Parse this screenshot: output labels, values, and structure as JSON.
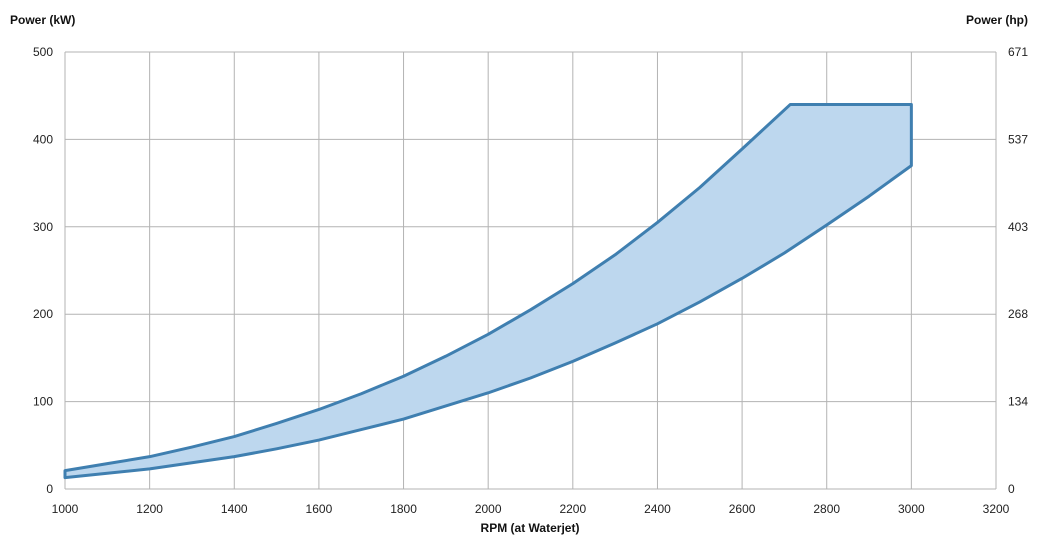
{
  "chart_data": {
    "type": "area",
    "xlabel": "RPM (at Waterjet)",
    "ylabel_left": "Power (kW)",
    "ylabel_right": "Power (hp)",
    "xlim": [
      1000,
      3200
    ],
    "ylim": [
      0,
      500
    ],
    "x_ticks": [
      1000,
      1200,
      1400,
      1600,
      1800,
      2000,
      2200,
      2400,
      2600,
      2800,
      3000,
      3200
    ],
    "y_ticks_left": [
      0,
      100,
      200,
      300,
      400,
      500
    ],
    "y_ticks_right": [
      0,
      134,
      268,
      403,
      537,
      671
    ],
    "grid": true,
    "fill_color": "#bdd7ee",
    "line_color": "#3f7fb0",
    "upper_boundary": {
      "x": [
        1000,
        1100,
        1200,
        1300,
        1400,
        1500,
        1600,
        1700,
        1800,
        1900,
        2000,
        2100,
        2200,
        2300,
        2400,
        2500,
        2600,
        2714,
        3000
      ],
      "y": [
        21,
        29,
        37,
        48,
        60,
        75,
        91,
        109,
        129,
        152,
        177,
        205,
        235,
        268,
        305,
        345,
        389,
        440,
        440
      ]
    },
    "lower_boundary": {
      "x": [
        1000,
        1100,
        1200,
        1300,
        1400,
        1500,
        1600,
        1700,
        1800,
        1900,
        2000,
        2100,
        2200,
        2300,
        2400,
        2500,
        2600,
        2700,
        2800,
        2900,
        3000
      ],
      "y": [
        13,
        18,
        23,
        30,
        37,
        46,
        56,
        68,
        80,
        95,
        110,
        127,
        146,
        167,
        189,
        214,
        241,
        270,
        302,
        335,
        370
      ]
    }
  }
}
